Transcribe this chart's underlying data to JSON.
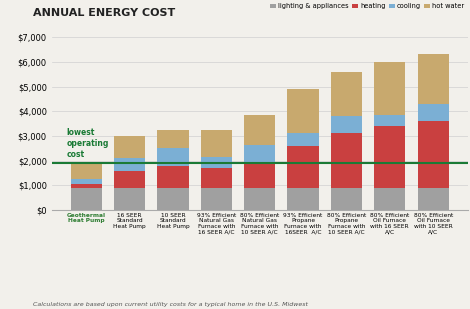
{
  "title": "ANNUAL ENERGY COST",
  "footnote": "Calculations are based upon current utility costs for a typical home in the U.S. Midwest",
  "categories": [
    "Geothermal\nHeat Pump",
    "16 SEER\nStandard\nHeat Pump",
    "10 SEER\nStandard\nHeat Pump",
    "93% Efficient\nNatural Gas\nFurnace with\n16 SEER A/C",
    "80% Efficient\nNatural Gas\nFurnace with\n10 SEER A/C",
    "93% Efficient\nPropane\nFurnace with\n16SEER  A/C",
    "80% Efficient\nPropane\nFurnace with\n10 SEER A/C",
    "80% Efficient\nOil Furnace\nwith 16 SEER\nA/C",
    "80% Efficient\nOil Furnace\nwith 10 SEER\nA/C"
  ],
  "first_label_color": "#2e7d32",
  "lighting_appliances": [
    900,
    900,
    900,
    900,
    900,
    900,
    900,
    900,
    900
  ],
  "heating": [
    150,
    700,
    900,
    800,
    1050,
    1700,
    2200,
    2500,
    2700
  ],
  "cooling": [
    200,
    500,
    700,
    450,
    700,
    500,
    700,
    450,
    700
  ],
  "hot_water": [
    650,
    900,
    750,
    1100,
    1200,
    1800,
    1800,
    2150,
    2000
  ],
  "lighting_color": "#a0a0a0",
  "heating_color": "#c94040",
  "cooling_color": "#7bafd4",
  "hot_water_color": "#c8a96e",
  "hline_y": 1900,
  "hline_color": "#1a7a35",
  "ylim": [
    0,
    7000
  ],
  "yticks": [
    0,
    1000,
    2000,
    3000,
    4000,
    5000,
    6000,
    7000
  ],
  "annotation_text": "lowest\noperating\ncost",
  "annotation_color": "#1a7a35",
  "background_color": "#f2f0eb",
  "grid_color": "#d0d0d0"
}
